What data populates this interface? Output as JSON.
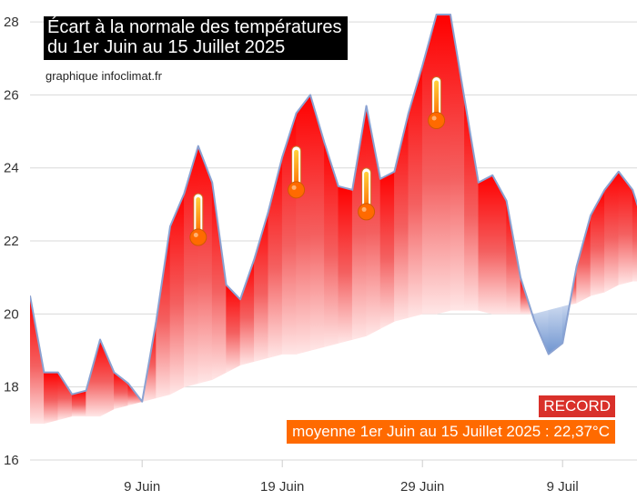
{
  "chart_data": {
    "type": "area",
    "title": "Écart à la normale des températures",
    "subtitle": "du 1er Juin au 15 Juillet 2025",
    "credit": "graphique infoclimat.fr",
    "xlabel": "",
    "ylabel": "",
    "ylim": [
      16,
      28.6
    ],
    "yticks": [
      16,
      18,
      20,
      22,
      24,
      26,
      28
    ],
    "xticks": [
      {
        "day": 9,
        "label": "9 Juin"
      },
      {
        "day": 19,
        "label": "19 Juin"
      },
      {
        "day": 29,
        "label": "29 Juin"
      },
      {
        "day": 39,
        "label": "9 Juil"
      }
    ],
    "days": [
      1,
      2,
      3,
      4,
      5,
      6,
      7,
      8,
      9,
      10,
      11,
      12,
      13,
      14,
      15,
      16,
      17,
      18,
      19,
      20,
      21,
      22,
      23,
      24,
      25,
      26,
      27,
      28,
      29,
      30,
      31,
      32,
      33,
      34,
      35,
      36,
      37,
      38,
      39,
      40,
      41,
      42,
      43,
      44,
      45
    ],
    "series": [
      {
        "values": [
          20.5,
          18.4,
          18.4,
          17.8,
          17.9,
          19.3,
          18.4,
          18.1,
          17.6,
          19.8,
          22.4,
          23.3,
          24.6,
          23.6,
          20.8,
          20.4,
          21.5,
          22.8,
          24.3,
          25.5,
          26.0,
          24.7,
          23.5,
          23.4,
          25.7,
          23.7,
          23.9,
          25.5,
          26.8,
          28.2,
          28.2,
          25.9,
          23.6,
          23.8,
          23.1,
          21.0,
          19.8,
          18.9,
          19.2,
          21.3,
          22.7,
          23.4,
          23.9,
          23.4,
          22.2
        ]
      },
      {
        "values": [
          17.0,
          17.0,
          17.1,
          17.2,
          17.2,
          17.2,
          17.4,
          17.5,
          17.6,
          17.7,
          17.8,
          18.0,
          18.1,
          18.2,
          18.4,
          18.6,
          18.7,
          18.8,
          18.9,
          18.9,
          19.0,
          19.1,
          19.2,
          19.3,
          19.4,
          19.6,
          19.8,
          19.9,
          20.0,
          20.0,
          20.1,
          20.1,
          20.1,
          20.0,
          20.0,
          20.0,
          20.0,
          20.1,
          20.2,
          20.3,
          20.5,
          20.6,
          20.8,
          20.9,
          20.9
        ]
      }
    ],
    "record_markers": [
      {
        "day": 13,
        "value": 22.1
      },
      {
        "day": 20,
        "value": 23.4
      },
      {
        "day": 25,
        "value": 22.8
      },
      {
        "day": 30,
        "value": 25.3
      }
    ],
    "grid": true,
    "colors": {
      "above": "#ff0000",
      "above_fade": "#ffd0d0",
      "below": "#7ea3d8",
      "line": "#8aa2d2",
      "grid": "#d9d9d9"
    }
  },
  "badges": {
    "record": "RECORD",
    "mean": "moyenne 1er Juin au 15 Juillet 2025 : 22,37°C"
  }
}
